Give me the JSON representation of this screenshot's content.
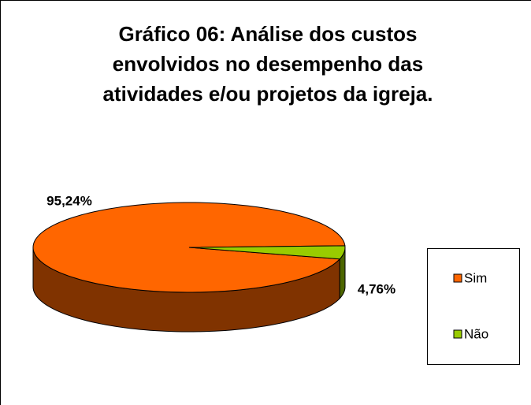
{
  "chart_data": {
    "type": "pie",
    "title": "Gráfico 06: Análise dos custos envolvidos no desempenho das atividades e/ou projetos da igreja.",
    "categories": [
      "Sim",
      "Não"
    ],
    "values": [
      95.24,
      4.76
    ],
    "value_labels": [
      "95,24%",
      "4,76%"
    ],
    "colors": [
      "#ff6600",
      "#99cc00"
    ],
    "legend": "right"
  }
}
